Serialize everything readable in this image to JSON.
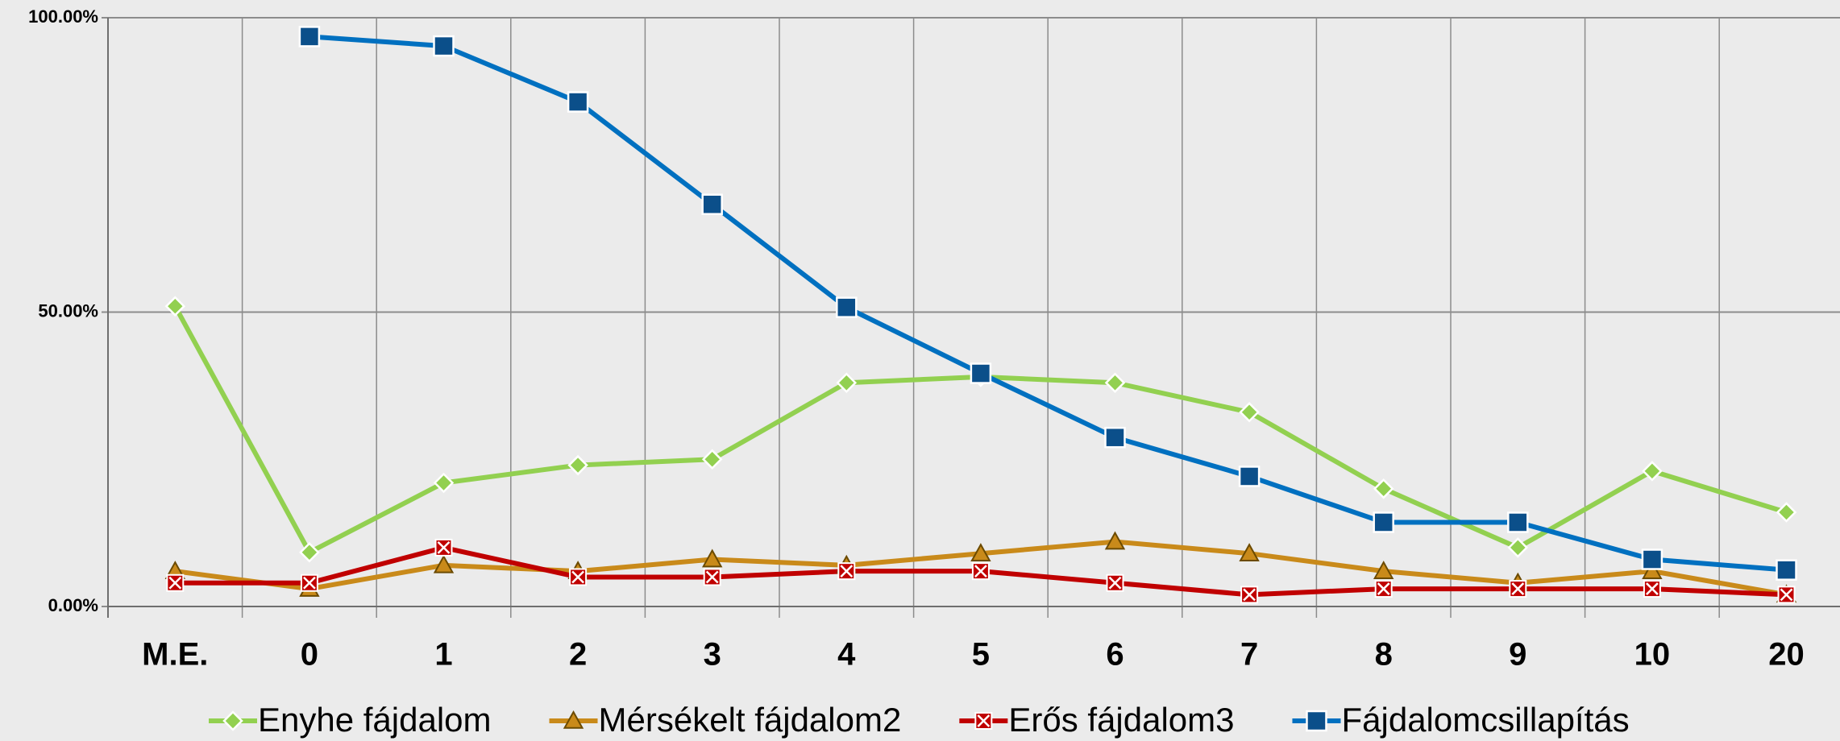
{
  "chart_data": {
    "type": "line",
    "categories": [
      "M.E.",
      "0",
      "1",
      "2",
      "3",
      "4",
      "5",
      "6",
      "7",
      "8",
      "9",
      "10",
      "20"
    ],
    "series": [
      {
        "name": "Enyhe fájdalom",
        "color": "#92d050",
        "marker": "diamond",
        "values": [
          51,
          9.2,
          21,
          24,
          25,
          38,
          39,
          38,
          33,
          20,
          10,
          23,
          16
        ]
      },
      {
        "name": "Mérsékelt fájdalom2",
        "color": "#c98a1a",
        "marker": "triangle",
        "values": [
          6,
          3,
          7,
          6,
          8,
          7,
          9,
          11,
          9,
          6,
          4,
          6,
          2
        ]
      },
      {
        "name": "Erős fájdalom3",
        "color": "#c00000",
        "marker": "xsquare",
        "values": [
          4,
          4,
          10,
          5,
          5,
          6,
          6,
          4,
          2,
          3,
          3,
          3,
          2
        ]
      },
      {
        "name": "Fájdalomcsillapítás",
        "color": "#0070c0",
        "marker": "square",
        "values": [
          null,
          96.8,
          95.2,
          85.7,
          68.3,
          50.8,
          39.6,
          28.7,
          22.1,
          14.3,
          14.3,
          8,
          6.2
        ]
      }
    ],
    "ylim": [
      0,
      100
    ],
    "yticks": [
      {
        "value": 0,
        "label": "0.00%"
      },
      {
        "value": 50,
        "label": "50.00%"
      },
      {
        "value": 100,
        "label": "100.00%"
      }
    ],
    "grid": true,
    "legend": "bottom"
  }
}
